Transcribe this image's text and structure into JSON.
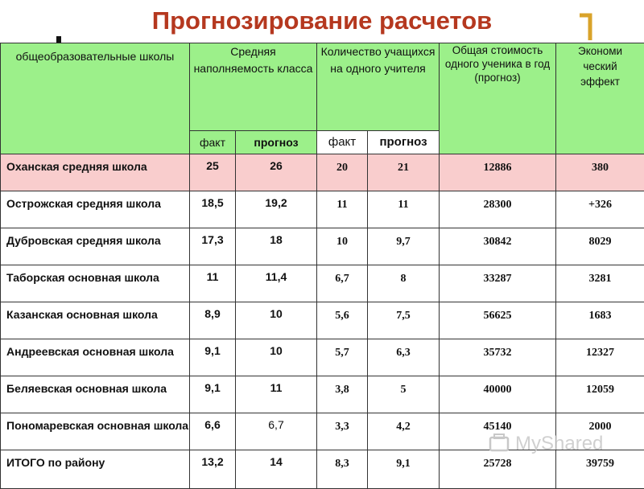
{
  "title": "Прогнозирование расчетов",
  "table": {
    "headers": {
      "schools": "общеобразовательные школы",
      "class_size": "Средняя наполняемость класса",
      "students_per_teacher": "Количество учащихся на одного учителя",
      "cost_per_student": "Общая стоимость одного ученика в год (прогноз)",
      "economic_effect": "Экономи ческий эффект",
      "fact": "факт",
      "forecast": "прогноз"
    },
    "rows": [
      {
        "name": "Оханская средняя школа",
        "c_fact": "25",
        "c_forecast": "26",
        "s_fact": "20",
        "s_forecast": "21",
        "cost": "12886",
        "effect": "380"
      },
      {
        "name": "Острожская средняя школа",
        "c_fact": "18,5",
        "c_forecast": "19,2",
        "s_fact": "11",
        "s_forecast": "11",
        "cost": "28300",
        "effect": "+326"
      },
      {
        "name": "Дубровская средняя школа",
        "c_fact": "17,3",
        "c_forecast": "18",
        "s_fact": "10",
        "s_forecast": "9,7",
        "cost": "30842",
        "effect": "8029"
      },
      {
        "name": "Таборская основная школа",
        "c_fact": "11",
        "c_forecast": "11,4",
        "s_fact": "6,7",
        "s_forecast": "8",
        "cost": "33287",
        "effect": "3281"
      },
      {
        "name": "Казанская основная школа",
        "c_fact": "8,9",
        "c_forecast": "10",
        "s_fact": "5,6",
        "s_forecast": "7,5",
        "cost": "56625",
        "effect": "1683"
      },
      {
        "name": "Андреевская основная школа",
        "c_fact": "9,1",
        "c_forecast": "10",
        "s_fact": "5,7",
        "s_forecast": "6,3",
        "cost": "35732",
        "effect": "12327"
      },
      {
        "name": "Беляевская основная школа",
        "c_fact": "9,1",
        "c_forecast": "11",
        "s_fact": "3,8",
        "s_forecast": "5",
        "cost": "40000",
        "effect": "12059"
      },
      {
        "name": "Пономаревская основная школа",
        "c_fact": "6,6",
        "c_forecast": "6,7",
        "s_fact": "3,3",
        "s_forecast": "4,2",
        "cost": "45140",
        "effect": "2000"
      },
      {
        "name": "ИТОГО по району",
        "c_fact": "13,2",
        "c_forecast": "14",
        "s_fact": "8,3",
        "s_forecast": "9,1",
        "cost": "25728",
        "effect": "39759"
      }
    ]
  },
  "watermark": "MyShared",
  "colors": {
    "title": "#b5381f",
    "header_bg": "#9cf08a",
    "highlight_row": "#f9cdcd",
    "bracket": "#d9a32a"
  }
}
